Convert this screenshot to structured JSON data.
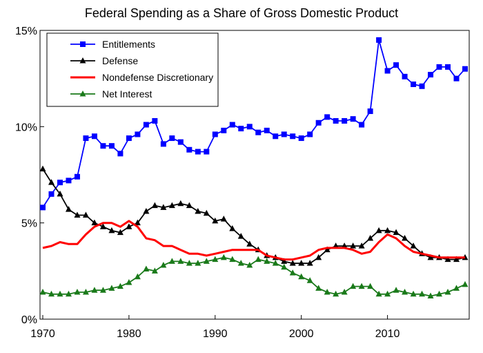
{
  "chart_data": {
    "type": "line",
    "title": "Federal Spending as a Share of Gross Domestic Product",
    "xlabel": "",
    "ylabel": "",
    "xlim": [
      1970,
      2019
    ],
    "ylim": [
      0,
      15
    ],
    "x_ticks": [
      1970,
      1980,
      1990,
      2000,
      2010
    ],
    "x_tick_labels": [
      "1970",
      "1980",
      "1990",
      "2000",
      "2010"
    ],
    "y_ticks": [
      0,
      5,
      10,
      15
    ],
    "y_tick_labels": [
      "0%",
      "5%",
      "10%",
      "15%"
    ],
    "grid": false,
    "legend_position": "top-left",
    "x": [
      1970,
      1971,
      1972,
      1973,
      1974,
      1975,
      1976,
      1977,
      1978,
      1979,
      1980,
      1981,
      1982,
      1983,
      1984,
      1985,
      1986,
      1987,
      1988,
      1989,
      1990,
      1991,
      1992,
      1993,
      1994,
      1995,
      1996,
      1997,
      1998,
      1999,
      2000,
      2001,
      2002,
      2003,
      2004,
      2005,
      2006,
      2007,
      2008,
      2009,
      2010,
      2011,
      2012,
      2013,
      2014,
      2015,
      2016,
      2017,
      2018,
      2019
    ],
    "series": [
      {
        "name": "Entitlements",
        "color": "#0000ff",
        "marker": "square",
        "values": [
          5.8,
          6.5,
          7.1,
          7.2,
          7.4,
          9.4,
          9.5,
          9.0,
          9.0,
          8.6,
          9.4,
          9.6,
          10.1,
          10.3,
          9.1,
          9.4,
          9.2,
          8.8,
          8.7,
          8.7,
          9.6,
          9.8,
          10.1,
          9.9,
          10.0,
          9.7,
          9.8,
          9.5,
          9.6,
          9.5,
          9.4,
          9.6,
          10.2,
          10.5,
          10.3,
          10.3,
          10.4,
          10.1,
          10.8,
          14.5,
          12.9,
          13.2,
          12.6,
          12.2,
          12.1,
          12.7,
          13.1,
          13.1,
          12.5,
          13.0
        ]
      },
      {
        "name": "Defense",
        "color": "#000000",
        "marker": "triangle",
        "values": [
          7.8,
          7.1,
          6.5,
          5.7,
          5.4,
          5.4,
          5.0,
          4.8,
          4.6,
          4.5,
          4.8,
          5.0,
          5.6,
          5.9,
          5.8,
          5.9,
          6.0,
          5.9,
          5.6,
          5.5,
          5.1,
          5.2,
          4.7,
          4.3,
          3.9,
          3.6,
          3.3,
          3.2,
          3.0,
          2.9,
          2.9,
          2.9,
          3.2,
          3.6,
          3.8,
          3.8,
          3.8,
          3.8,
          4.2,
          4.6,
          4.6,
          4.5,
          4.2,
          3.8,
          3.4,
          3.2,
          3.2,
          3.1,
          3.1,
          3.2
        ]
      },
      {
        "name": "Nondefense Discretionary",
        "color": "#ff0000",
        "marker": "none",
        "values": [
          3.7,
          3.8,
          4.0,
          3.9,
          3.9,
          4.4,
          4.8,
          5.0,
          5.0,
          4.8,
          5.1,
          4.8,
          4.2,
          4.1,
          3.8,
          3.8,
          3.6,
          3.4,
          3.4,
          3.3,
          3.4,
          3.5,
          3.6,
          3.6,
          3.6,
          3.6,
          3.3,
          3.2,
          3.1,
          3.1,
          3.2,
          3.3,
          3.6,
          3.7,
          3.7,
          3.7,
          3.6,
          3.4,
          3.5,
          4.0,
          4.4,
          4.2,
          3.8,
          3.5,
          3.4,
          3.3,
          3.2,
          3.2,
          3.2,
          3.2
        ]
      },
      {
        "name": "Net Interest",
        "color": "#1a7a1a",
        "marker": "triangle",
        "values": [
          1.4,
          1.3,
          1.3,
          1.3,
          1.4,
          1.4,
          1.5,
          1.5,
          1.6,
          1.7,
          1.9,
          2.2,
          2.6,
          2.5,
          2.8,
          3.0,
          3.0,
          2.9,
          2.9,
          3.0,
          3.1,
          3.2,
          3.1,
          2.9,
          2.8,
          3.1,
          3.0,
          2.9,
          2.7,
          2.4,
          2.2,
          2.0,
          1.6,
          1.4,
          1.3,
          1.4,
          1.7,
          1.7,
          1.7,
          1.3,
          1.3,
          1.5,
          1.4,
          1.3,
          1.3,
          1.2,
          1.3,
          1.4,
          1.6,
          1.8
        ]
      }
    ]
  }
}
